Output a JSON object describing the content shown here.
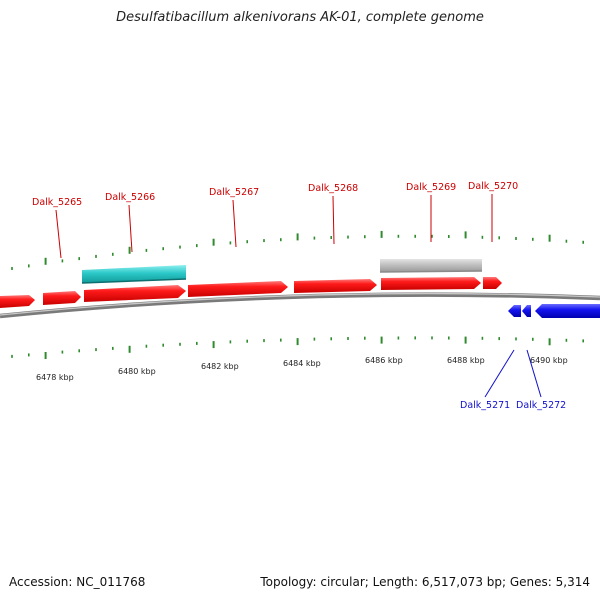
{
  "title": "Desulfatibacillum alkenivorans AK-01, complete genome",
  "footer": {
    "accession": "Accession: NC_011768",
    "summary": "Topology: circular; Length: 6,517,073 bp; Genes: 5,314"
  },
  "colors": {
    "forward_gene": "#ff0000",
    "reverse_gene": "#1010ee",
    "highlight_gene": "#26c4c4",
    "gray_gene": "#bbbbbb",
    "backbone": "#888888",
    "tick": "#2e8b2e",
    "forward_label": "#cc0000",
    "reverse_label": "#1010cc"
  },
  "scale_labels": [
    "6478 kbp",
    "6480 kbp",
    "6482 kbp",
    "6484 kbp",
    "6486 kbp",
    "6488 kbp",
    "6490 kbp"
  ],
  "gene_labels": [
    {
      "name": "Dalk_5265",
      "strand": "forward"
    },
    {
      "name": "Dalk_5266",
      "strand": "forward"
    },
    {
      "name": "Dalk_5267",
      "strand": "forward"
    },
    {
      "name": "Dalk_5268",
      "strand": "forward"
    },
    {
      "name": "Dalk_5269",
      "strand": "forward"
    },
    {
      "name": "Dalk_5270",
      "strand": "forward"
    },
    {
      "name": "Dalk_5271",
      "strand": "reverse"
    },
    {
      "name": "Dalk_5272",
      "strand": "reverse"
    }
  ]
}
